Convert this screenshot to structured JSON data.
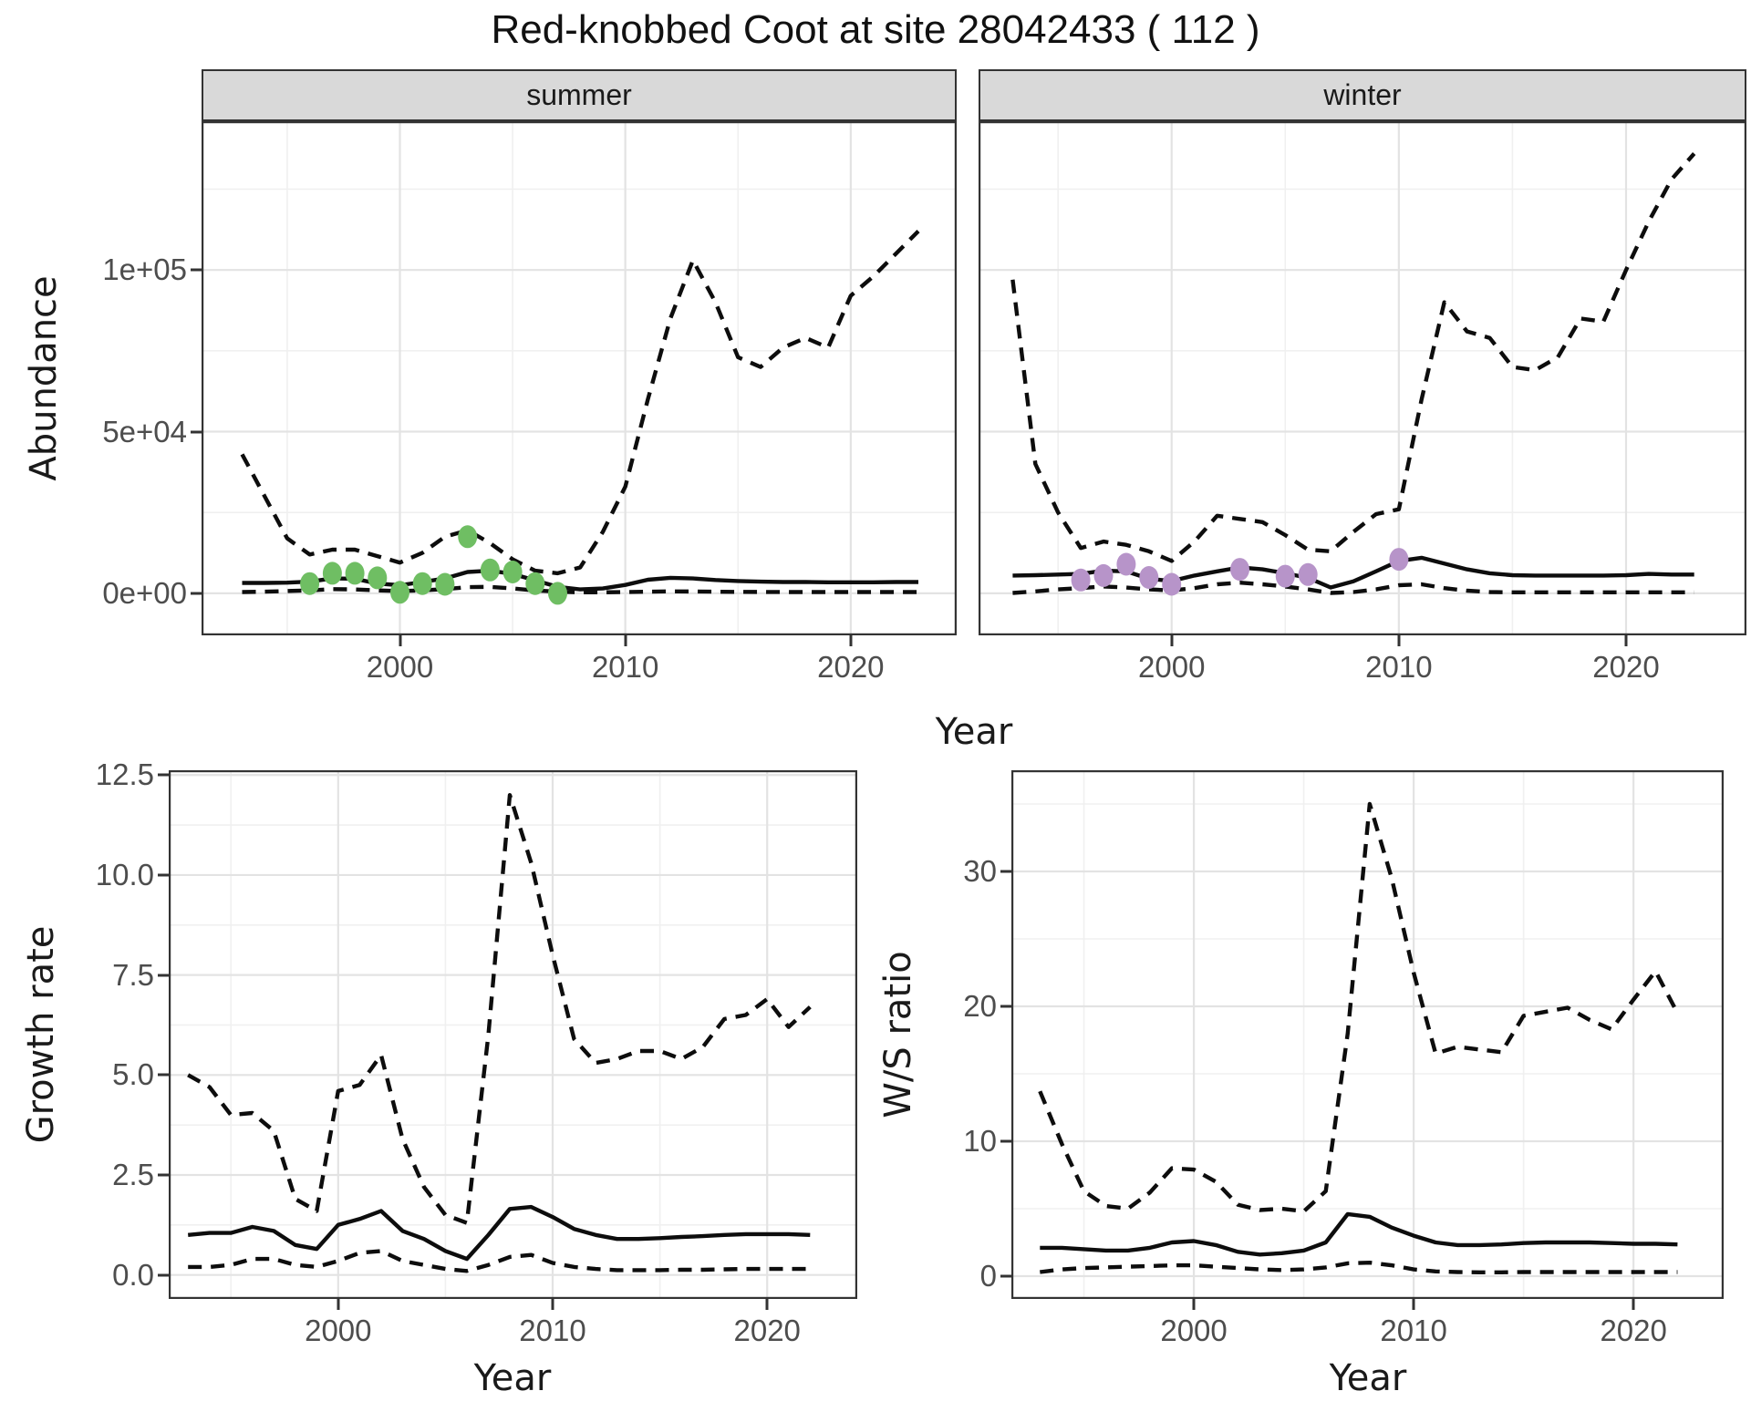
{
  "title": "Red-knobbed Coot at site 28042433 ( 112 )",
  "facets": {
    "summer": "summer",
    "winter": "winter"
  },
  "axis_titles": {
    "abundance": "Abundance",
    "year_top": "Year",
    "growth_rate": "Growth rate",
    "ws_ratio": "W/S ratio",
    "year_growth": "Year",
    "year_ws": "Year"
  },
  "colors": {
    "summer_points": "#6FBE63",
    "winter_points": "#B794C9",
    "line": "#0d0d0d",
    "grid_major": "#e3e3e3",
    "grid_minor": "#f0f0f0",
    "panel_border": "#333333",
    "strip_bg": "#d9d9d9",
    "tick_text": "#4d4d4d"
  },
  "chart_data": [
    {
      "id": "abundance_summer",
      "type": "line",
      "facet": "summer",
      "title": "Red-knobbed Coot at site 28042433 ( 112 )",
      "xlabel": "Year",
      "ylabel": "Abundance",
      "xlim": [
        1991.2,
        2024.7
      ],
      "ylim": [
        -13000,
        146000
      ],
      "xticks": [
        {
          "v": 2000,
          "label": "2000"
        },
        {
          "v": 2010,
          "label": "2010"
        },
        {
          "v": 2020,
          "label": "2020"
        }
      ],
      "xminor": [
        1995,
        2005,
        2015
      ],
      "yticks": [
        {
          "v": 0,
          "label": "0e+00"
        },
        {
          "v": 50000,
          "label": "5e+04"
        },
        {
          "v": 100000,
          "label": "1e+05"
        }
      ],
      "yminor": [
        25000,
        75000,
        125000
      ],
      "show_y_labels": true,
      "x": [
        1993,
        1994,
        1995,
        1996,
        1997,
        1998,
        1999,
        2000,
        2001,
        2002,
        2003,
        2004,
        2005,
        2006,
        2007,
        2008,
        2009,
        2010,
        2011,
        2012,
        2013,
        2014,
        2015,
        2016,
        2017,
        2018,
        2019,
        2020,
        2021,
        2022,
        2023
      ],
      "series": [
        {
          "name": "upper_ci",
          "style": "dashed",
          "values": [
            43000,
            30000,
            17000,
            12000,
            13500,
            13500,
            11500,
            9500,
            12500,
            17500,
            19500,
            15500,
            10500,
            7000,
            6200,
            8000,
            19000,
            33000,
            60000,
            85000,
            103000,
            90000,
            73000,
            70000,
            76000,
            79000,
            76000,
            92000,
            98000,
            105000,
            112000
          ]
        },
        {
          "name": "median",
          "style": "solid",
          "values": [
            3200,
            3200,
            3300,
            3600,
            4600,
            4500,
            3000,
            2500,
            3500,
            4600,
            6600,
            7000,
            6000,
            4000,
            2000,
            1200,
            1500,
            2600,
            4200,
            4800,
            4600,
            4100,
            3800,
            3600,
            3500,
            3500,
            3400,
            3400,
            3400,
            3500,
            3500
          ]
        },
        {
          "name": "lower_ci",
          "style": "dashed",
          "values": [
            400,
            500,
            700,
            900,
            1300,
            1200,
            900,
            700,
            900,
            1300,
            1900,
            2000,
            1500,
            900,
            500,
            300,
            300,
            400,
            500,
            600,
            550,
            500,
            450,
            420,
            400,
            400,
            380,
            380,
            380,
            400,
            400
          ]
        }
      ],
      "points": {
        "name": "summer observed counts",
        "color_key": "summer_points",
        "x": [
          1996,
          1997,
          1998,
          1999,
          2000,
          2001,
          2002,
          2003,
          2004,
          2005,
          2006,
          2007
        ],
        "y": [
          3000,
          6200,
          6200,
          4800,
          300,
          3000,
          2800,
          17500,
          7200,
          6600,
          3000,
          0
        ]
      }
    },
    {
      "id": "abundance_winter",
      "type": "line",
      "facet": "winter",
      "xlabel": "Year",
      "ylabel": "Abundance",
      "xlim": [
        1991.5,
        2025.3
      ],
      "ylim": [
        -13000,
        146000
      ],
      "xticks": [
        {
          "v": 2000,
          "label": "2000"
        },
        {
          "v": 2010,
          "label": "2010"
        },
        {
          "v": 2020,
          "label": "2020"
        }
      ],
      "xminor": [
        1995,
        2005,
        2015
      ],
      "yticks": [
        {
          "v": 0,
          "label": "0e+00"
        },
        {
          "v": 50000,
          "label": "5e+04"
        },
        {
          "v": 100000,
          "label": "1e+05"
        }
      ],
      "yminor": [
        25000,
        75000,
        125000
      ],
      "show_y_labels": false,
      "x": [
        1993,
        1994,
        1995,
        1996,
        1997,
        1998,
        1999,
        2000,
        2001,
        2002,
        2003,
        2004,
        2005,
        2006,
        2007,
        2008,
        2009,
        2010,
        2011,
        2012,
        2013,
        2014,
        2015,
        2016,
        2017,
        2018,
        2019,
        2020,
        2021,
        2022,
        2023
      ],
      "series": [
        {
          "name": "upper_ci",
          "style": "dashed",
          "values": [
            97000,
            40000,
            25000,
            14000,
            16000,
            15000,
            13000,
            10000,
            16000,
            24000,
            23000,
            22000,
            18000,
            13500,
            13000,
            19000,
            24500,
            26000,
            60000,
            90000,
            81000,
            79000,
            70000,
            69000,
            73000,
            85000,
            84000,
            100000,
            115000,
            128000,
            136000
          ]
        },
        {
          "name": "median",
          "style": "solid",
          "values": [
            5500,
            5600,
            5800,
            6000,
            7000,
            6800,
            4500,
            3800,
            5500,
            6800,
            8000,
            7400,
            6200,
            4800,
            1800,
            3700,
            6800,
            10000,
            11000,
            9200,
            7400,
            6200,
            5600,
            5500,
            5500,
            5500,
            5500,
            5600,
            6000,
            5800,
            5800
          ]
        },
        {
          "name": "lower_ci",
          "style": "dashed",
          "values": [
            100,
            600,
            1200,
            1600,
            2100,
            1800,
            1200,
            900,
            1600,
            2800,
            3300,
            2800,
            2100,
            1200,
            100,
            400,
            1200,
            2500,
            2800,
            1600,
            800,
            400,
            300,
            300,
            300,
            300,
            300,
            300,
            300,
            300,
            300
          ]
        }
      ],
      "points": {
        "name": "winter observed counts",
        "color_key": "winter_points",
        "x": [
          1996,
          1997,
          1998,
          1999,
          2000,
          2003,
          2005,
          2006,
          2010
        ],
        "y": [
          4100,
          5500,
          9000,
          4900,
          2800,
          7400,
          5300,
          5800,
          10500
        ]
      }
    },
    {
      "id": "growth_rate",
      "type": "line",
      "xlabel": "Year",
      "ylabel": "Growth rate",
      "xlim": [
        1992.1,
        2024.2
      ],
      "ylim": [
        -0.6,
        12.62
      ],
      "xticks": [
        {
          "v": 2000,
          "label": "2000"
        },
        {
          "v": 2010,
          "label": "2010"
        },
        {
          "v": 2020,
          "label": "2020"
        }
      ],
      "xminor": [
        1995,
        2005,
        2015
      ],
      "yticks": [
        {
          "v": 0,
          "label": "0.0"
        },
        {
          "v": 2.5,
          "label": "2.5"
        },
        {
          "v": 5,
          "label": "5.0"
        },
        {
          "v": 7.5,
          "label": "7.5"
        },
        {
          "v": 10,
          "label": "10.0"
        },
        {
          "v": 12.5,
          "label": "12.5"
        }
      ],
      "yminor": [
        1.25,
        3.75,
        6.25,
        8.75,
        11.25
      ],
      "show_y_labels": true,
      "x": [
        1993,
        1994,
        1995,
        1996,
        1997,
        1998,
        1999,
        2000,
        2001,
        2002,
        2003,
        2004,
        2005,
        2006,
        2007,
        2008,
        2009,
        2010,
        2011,
        2012,
        2013,
        2014,
        2015,
        2016,
        2017,
        2018,
        2019,
        2020,
        2021,
        2022
      ],
      "series": [
        {
          "name": "upper_ci",
          "style": "dashed",
          "values": [
            5.0,
            4.7,
            4.0,
            4.05,
            3.6,
            1.9,
            1.6,
            4.6,
            4.75,
            5.5,
            3.4,
            2.2,
            1.5,
            1.3,
            6.0,
            12.0,
            10.3,
            8.0,
            5.9,
            5.3,
            5.4,
            5.6,
            5.6,
            5.4,
            5.7,
            6.4,
            6.5,
            6.9,
            6.2,
            6.7
          ]
        },
        {
          "name": "median",
          "style": "solid",
          "values": [
            1.0,
            1.05,
            1.05,
            1.2,
            1.1,
            0.75,
            0.65,
            1.25,
            1.4,
            1.6,
            1.1,
            0.9,
            0.6,
            0.4,
            1.0,
            1.65,
            1.7,
            1.45,
            1.15,
            1.0,
            0.9,
            0.9,
            0.92,
            0.95,
            0.97,
            1.0,
            1.02,
            1.02,
            1.02,
            1.0
          ]
        },
        {
          "name": "lower_ci",
          "style": "dashed",
          "values": [
            0.2,
            0.2,
            0.25,
            0.4,
            0.4,
            0.25,
            0.2,
            0.35,
            0.55,
            0.6,
            0.35,
            0.25,
            0.15,
            0.1,
            0.25,
            0.45,
            0.5,
            0.3,
            0.2,
            0.15,
            0.12,
            0.12,
            0.12,
            0.13,
            0.13,
            0.14,
            0.15,
            0.15,
            0.15,
            0.15
          ]
        }
      ]
    },
    {
      "id": "ws_ratio",
      "type": "line",
      "xlabel": "Year",
      "ylabel": "W/S ratio",
      "xlim": [
        1991.7,
        2024.1
      ],
      "ylim": [
        -1.69,
        37.5
      ],
      "xticks": [
        {
          "v": 2000,
          "label": "2000"
        },
        {
          "v": 2010,
          "label": "2010"
        },
        {
          "v": 2020,
          "label": "2020"
        }
      ],
      "xminor": [
        1995,
        2005,
        2015
      ],
      "yticks": [
        {
          "v": 0,
          "label": "0"
        },
        {
          "v": 10,
          "label": "10"
        },
        {
          "v": 20,
          "label": "20"
        },
        {
          "v": 30,
          "label": "30"
        }
      ],
      "yminor": [
        5,
        15,
        25,
        35
      ],
      "show_y_labels": true,
      "x": [
        1993,
        1994,
        1995,
        1996,
        1997,
        1998,
        1999,
        2000,
        2001,
        2002,
        2003,
        2004,
        2005,
        2006,
        2007,
        2008,
        2009,
        2010,
        2011,
        2012,
        2013,
        2014,
        2015,
        2016,
        2017,
        2018,
        2019,
        2020,
        2021,
        2022
      ],
      "series": [
        {
          "name": "upper_ci",
          "style": "dashed",
          "values": [
            13.7,
            9.8,
            6.3,
            5.2,
            5.0,
            6.2,
            8.0,
            7.9,
            7.0,
            5.3,
            4.9,
            5.0,
            4.8,
            6.3,
            18.0,
            35.0,
            29.5,
            22.5,
            16.5,
            17.0,
            16.8,
            16.6,
            19.3,
            19.6,
            19.9,
            19.0,
            18.3,
            20.5,
            22.6,
            19.5
          ]
        },
        {
          "name": "median",
          "style": "solid",
          "values": [
            2.1,
            2.1,
            2.0,
            1.9,
            1.9,
            2.1,
            2.5,
            2.6,
            2.3,
            1.8,
            1.6,
            1.7,
            1.9,
            2.5,
            4.6,
            4.4,
            3.6,
            3.0,
            2.5,
            2.3,
            2.3,
            2.35,
            2.45,
            2.5,
            2.5,
            2.5,
            2.45,
            2.4,
            2.4,
            2.35
          ]
        },
        {
          "name": "lower_ci",
          "style": "dashed",
          "values": [
            0.3,
            0.5,
            0.6,
            0.65,
            0.7,
            0.75,
            0.8,
            0.8,
            0.7,
            0.6,
            0.5,
            0.45,
            0.5,
            0.65,
            0.95,
            1.0,
            0.8,
            0.5,
            0.35,
            0.3,
            0.28,
            0.28,
            0.3,
            0.3,
            0.3,
            0.3,
            0.3,
            0.3,
            0.3,
            0.3
          ]
        }
      ]
    }
  ]
}
